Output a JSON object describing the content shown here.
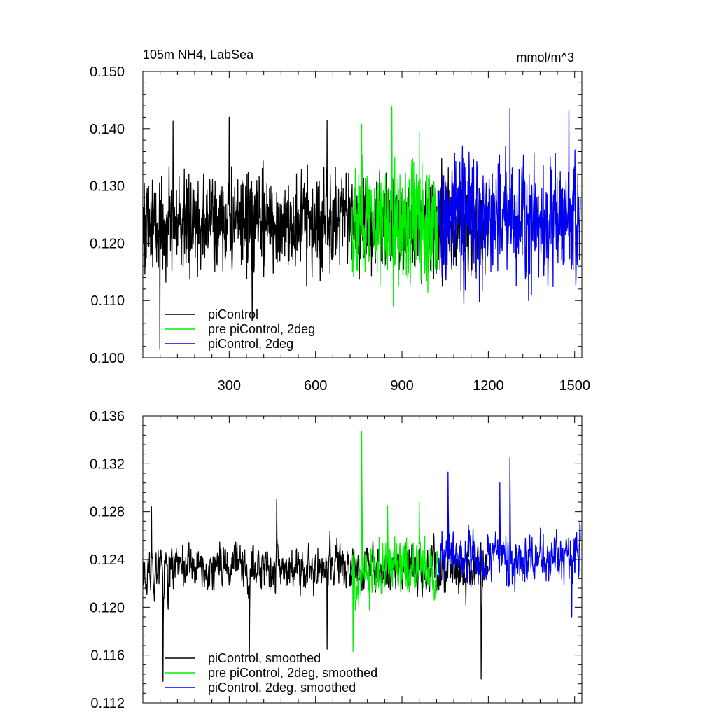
{
  "chart_data": [
    {
      "type": "line",
      "title_left": "105m NH4, LabSea",
      "title_right": "mmol/m^3",
      "xlim": [
        0,
        1525
      ],
      "ylim": [
        0.1,
        0.15
      ],
      "x_ticks": [
        300,
        600,
        900,
        1200,
        1500
      ],
      "x_tick_labels": [
        "300",
        "600",
        "900",
        "1200",
        "1500"
      ],
      "y_ticks": [
        0.1,
        0.11,
        0.12,
        0.13,
        0.14,
        0.15
      ],
      "y_tick_labels": [
        "0.100",
        "0.110",
        "0.120",
        "0.130",
        "0.140",
        "0.150"
      ],
      "grid": false,
      "legend_position": "bottom-left",
      "series": [
        {
          "name": "piControl",
          "color": "#000000",
          "x_range": [
            1,
            1200
          ],
          "mean": 0.1235,
          "spread": 0.0042,
          "spikes": [
            [
              59,
              0.1015
            ],
            [
              105,
              0.1413
            ],
            [
              300,
              0.142
            ],
            [
              380,
              0.1065
            ],
            [
              640,
              0.1415
            ],
            [
              1040,
              0.1125
            ],
            [
              1115,
              0.1095
            ]
          ]
        },
        {
          "name": "pre piControl, 2deg",
          "color": "#00ee00",
          "x_range": [
            725,
            1025
          ],
          "mean": 0.124,
          "spread": 0.005,
          "spikes": [
            [
              760,
              0.1408
            ],
            [
              865,
              0.1438
            ],
            [
              960,
              0.1395
            ],
            [
              870,
              0.109
            ]
          ]
        },
        {
          "name": "piControl, 2deg",
          "color": "#0000ee",
          "x_range": [
            1025,
            1520
          ],
          "mean": 0.1245,
          "spread": 0.0052,
          "spikes": [
            [
              1275,
              0.1436
            ],
            [
              1480,
              0.1432
            ],
            [
              1110,
              0.137
            ],
            [
              1340,
              0.11
            ]
          ]
        }
      ]
    },
    {
      "type": "line",
      "xlim": [
        0,
        1525
      ],
      "ylim": [
        0.112,
        0.136
      ],
      "x_ticks": [
        300,
        600,
        900,
        1200,
        1500
      ],
      "y_ticks": [
        0.112,
        0.116,
        0.12,
        0.124,
        0.128,
        0.132,
        0.136
      ],
      "y_tick_labels": [
        "0.112",
        "0.116",
        "0.120",
        "0.124",
        "0.128",
        "0.132",
        "0.136"
      ],
      "grid": false,
      "legend_position": "bottom-left",
      "series": [
        {
          "name": "piControl, smoothed",
          "color": "#000000",
          "x_range": [
            1,
            1200
          ],
          "mean": 0.1232,
          "spread": 0.0018,
          "spikes": [
            [
              70,
              0.1138
            ],
            [
              30,
              0.1284
            ],
            [
              370,
              0.1158
            ],
            [
              640,
              0.1165
            ],
            [
              1175,
              0.114
            ],
            [
              465,
              0.129
            ]
          ]
        },
        {
          "name": "pre piControl, 2deg, smoothed",
          "color": "#00ee00",
          "x_range": [
            725,
            1025
          ],
          "mean": 0.123,
          "spread": 0.0022,
          "spikes": [
            [
              760,
              0.1347
            ],
            [
              730,
              0.1163
            ],
            [
              850,
              0.1285
            ],
            [
              960,
              0.1288
            ]
          ]
        },
        {
          "name": "piControl, 2deg, smoothed",
          "color": "#0000ee",
          "x_range": [
            1025,
            1520
          ],
          "mean": 0.124,
          "spread": 0.002,
          "spikes": [
            [
              1060,
              0.1313
            ],
            [
              1275,
              0.1325
            ],
            [
              1240,
              0.1304
            ],
            [
              1490,
              0.1192
            ]
          ]
        }
      ]
    }
  ]
}
